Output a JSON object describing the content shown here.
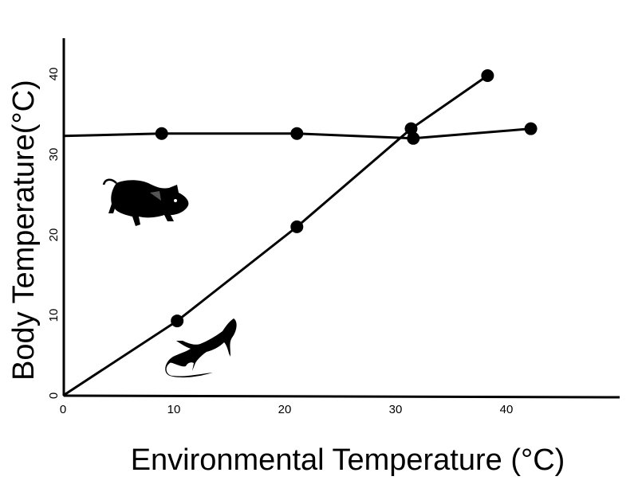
{
  "chart_data": {
    "type": "line",
    "title": "",
    "xlabel": "Environmental Temperature (°C)",
    "ylabel": "Body Temperature(°C)",
    "xlim": [
      0,
      50
    ],
    "ylim": [
      0,
      44
    ],
    "xticks": [
      "0",
      "10",
      "20",
      "30",
      "40"
    ],
    "yticks": [
      "0",
      "10",
      "20",
      "30",
      "40"
    ],
    "grid": false,
    "series": [
      {
        "icon": "mouse-icon",
        "color": "#000000",
        "line_start": [
          0,
          32.3
        ],
        "points": [
          [
            8.9,
            32.6
          ],
          [
            21.1,
            32.6
          ],
          [
            31.6,
            32.0
          ],
          [
            42.2,
            33.2
          ]
        ]
      },
      {
        "icon": "lizard-icon",
        "color": "#000000",
        "line_start": [
          0,
          0
        ],
        "points": [
          [
            10.3,
            9.3
          ],
          [
            21.1,
            21.0
          ],
          [
            31.4,
            33.2
          ],
          [
            38.3,
            39.8
          ]
        ]
      }
    ]
  }
}
